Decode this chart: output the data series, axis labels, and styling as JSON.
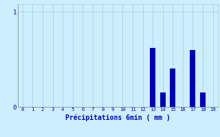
{
  "categories": [
    0,
    1,
    2,
    3,
    4,
    5,
    6,
    7,
    8,
    9,
    10,
    11,
    12,
    13,
    14,
    15,
    16,
    17,
    18,
    19
  ],
  "values": [
    0,
    0,
    0,
    0,
    0,
    0,
    0,
    0,
    0,
    0,
    0,
    0,
    0,
    0.62,
    0.15,
    0.4,
    0,
    0.6,
    0.15,
    0
  ],
  "bar_color": "#0000bb",
  "background_color": "#cceeff",
  "grid_color": "#aacccc",
  "xlabel": "Précipitations 6min ( mm )",
  "ytick_labels": [
    "0",
    "1"
  ],
  "ytick_vals": [
    0,
    1
  ],
  "ylim": [
    0,
    1.08
  ],
  "xlim": [
    -0.5,
    19.5
  ],
  "label_color": "#0000bb",
  "tick_color": "#0000bb",
  "figsize": [
    3.2,
    2.0
  ],
  "dpi": 100,
  "bar_width": 0.55
}
